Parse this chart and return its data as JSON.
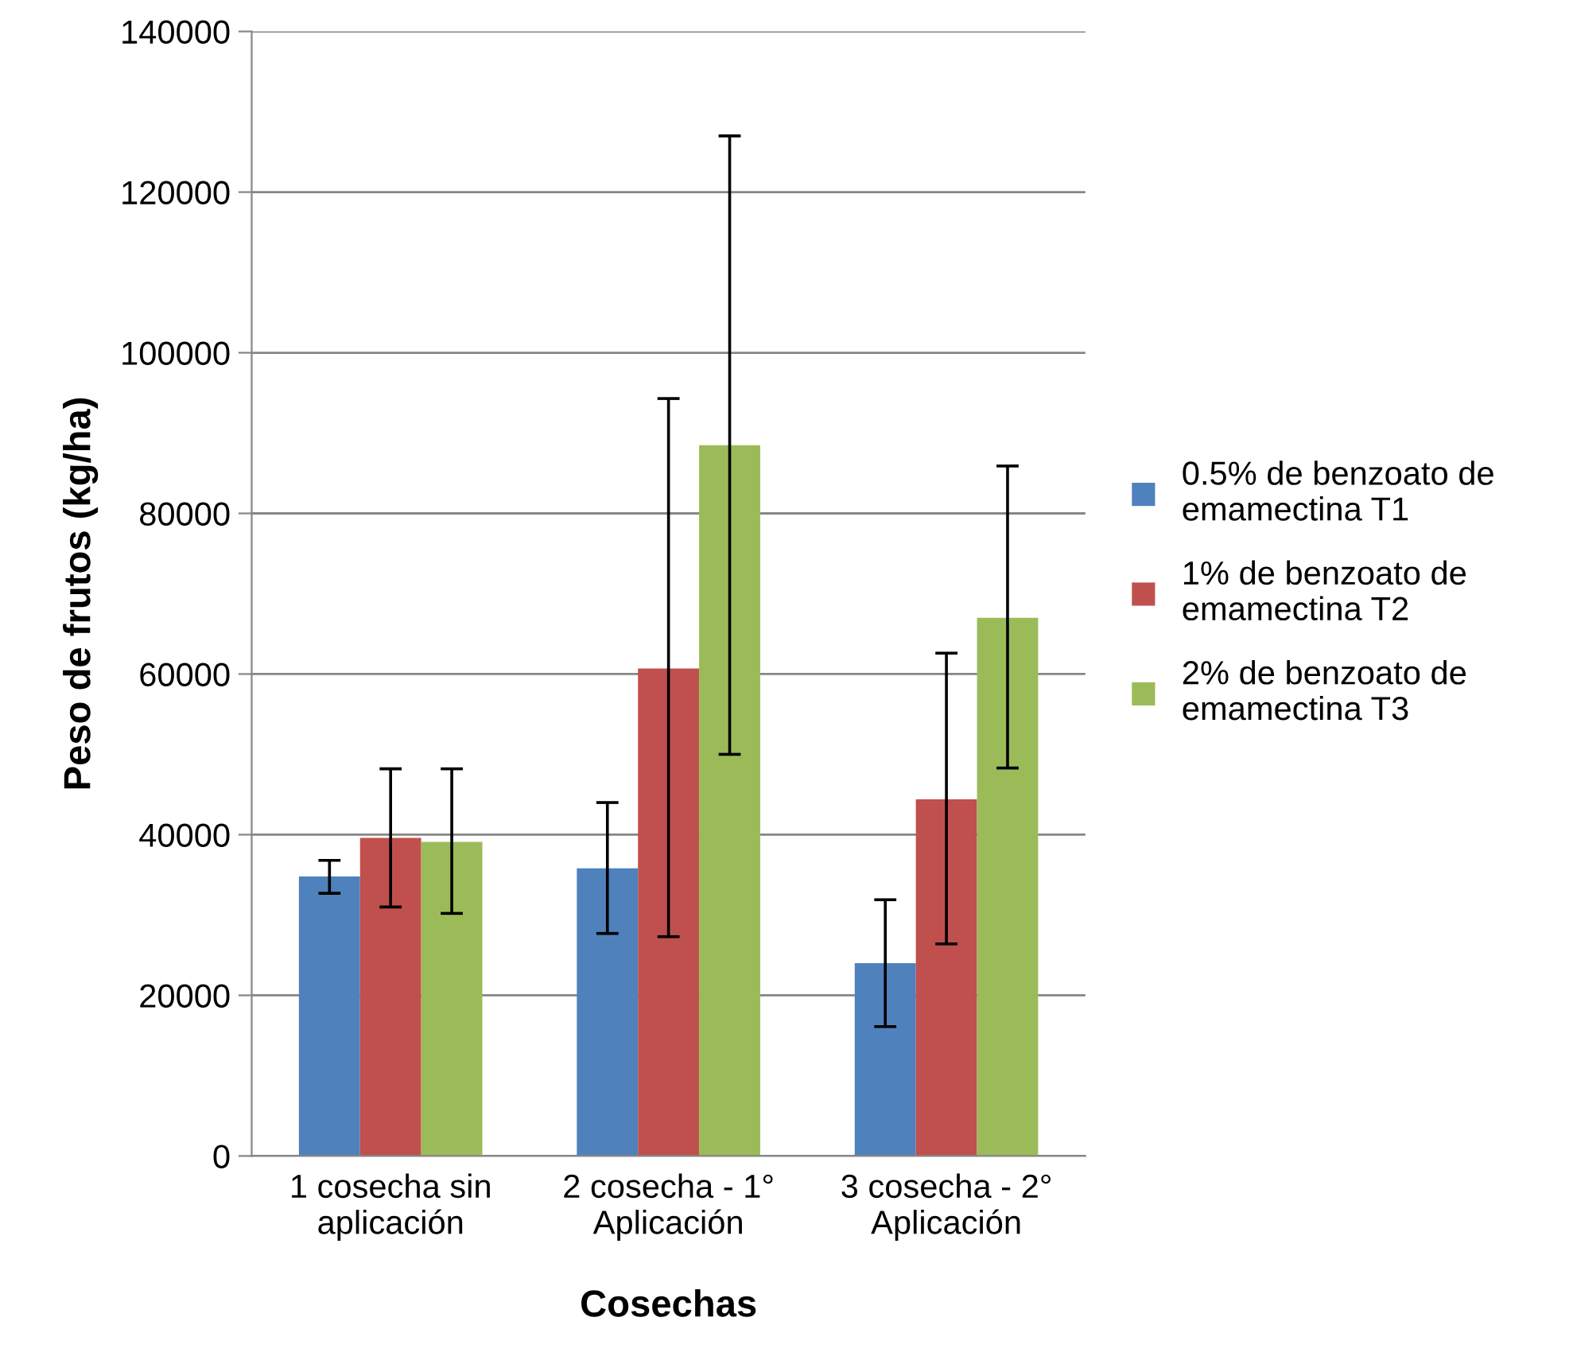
{
  "chart_data": {
    "type": "bar",
    "xlabel": "Cosechas",
    "ylabel": "Peso de frutos (kg/ha)",
    "categories": [
      "1 cosecha sin\naplicación",
      "2 cosecha - 1°\nAplicación",
      "3 cosecha - 2°\nAplicación"
    ],
    "series": [
      {
        "name": "0.5% de benzoato de\nemamectina T1",
        "color": "#4f81bd",
        "values": [
          34800,
          35800,
          24000
        ],
        "errors": [
          [
            32700,
            36800
          ],
          [
            27700,
            44000
          ],
          [
            16100,
            31900
          ]
        ]
      },
      {
        "name": "1% de benzoato de\nemamectina T2",
        "color": "#c0504d",
        "values": [
          39600,
          60700,
          44400
        ],
        "errors": [
          [
            31000,
            48200
          ],
          [
            27300,
            94300
          ],
          [
            26400,
            62600
          ]
        ]
      },
      {
        "name": "2% de benzoato de\nemamectina T3",
        "color": "#9bbb59",
        "values": [
          39100,
          88500,
          67000
        ],
        "errors": [
          [
            30200,
            48200
          ],
          [
            50000,
            127000
          ],
          [
            48300,
            85900
          ]
        ]
      }
    ],
    "ylim": [
      0,
      140000
    ],
    "yticks": [
      0,
      20000,
      40000,
      60000,
      80000,
      100000,
      120000,
      140000
    ],
    "grid": "y",
    "legend": "right"
  }
}
